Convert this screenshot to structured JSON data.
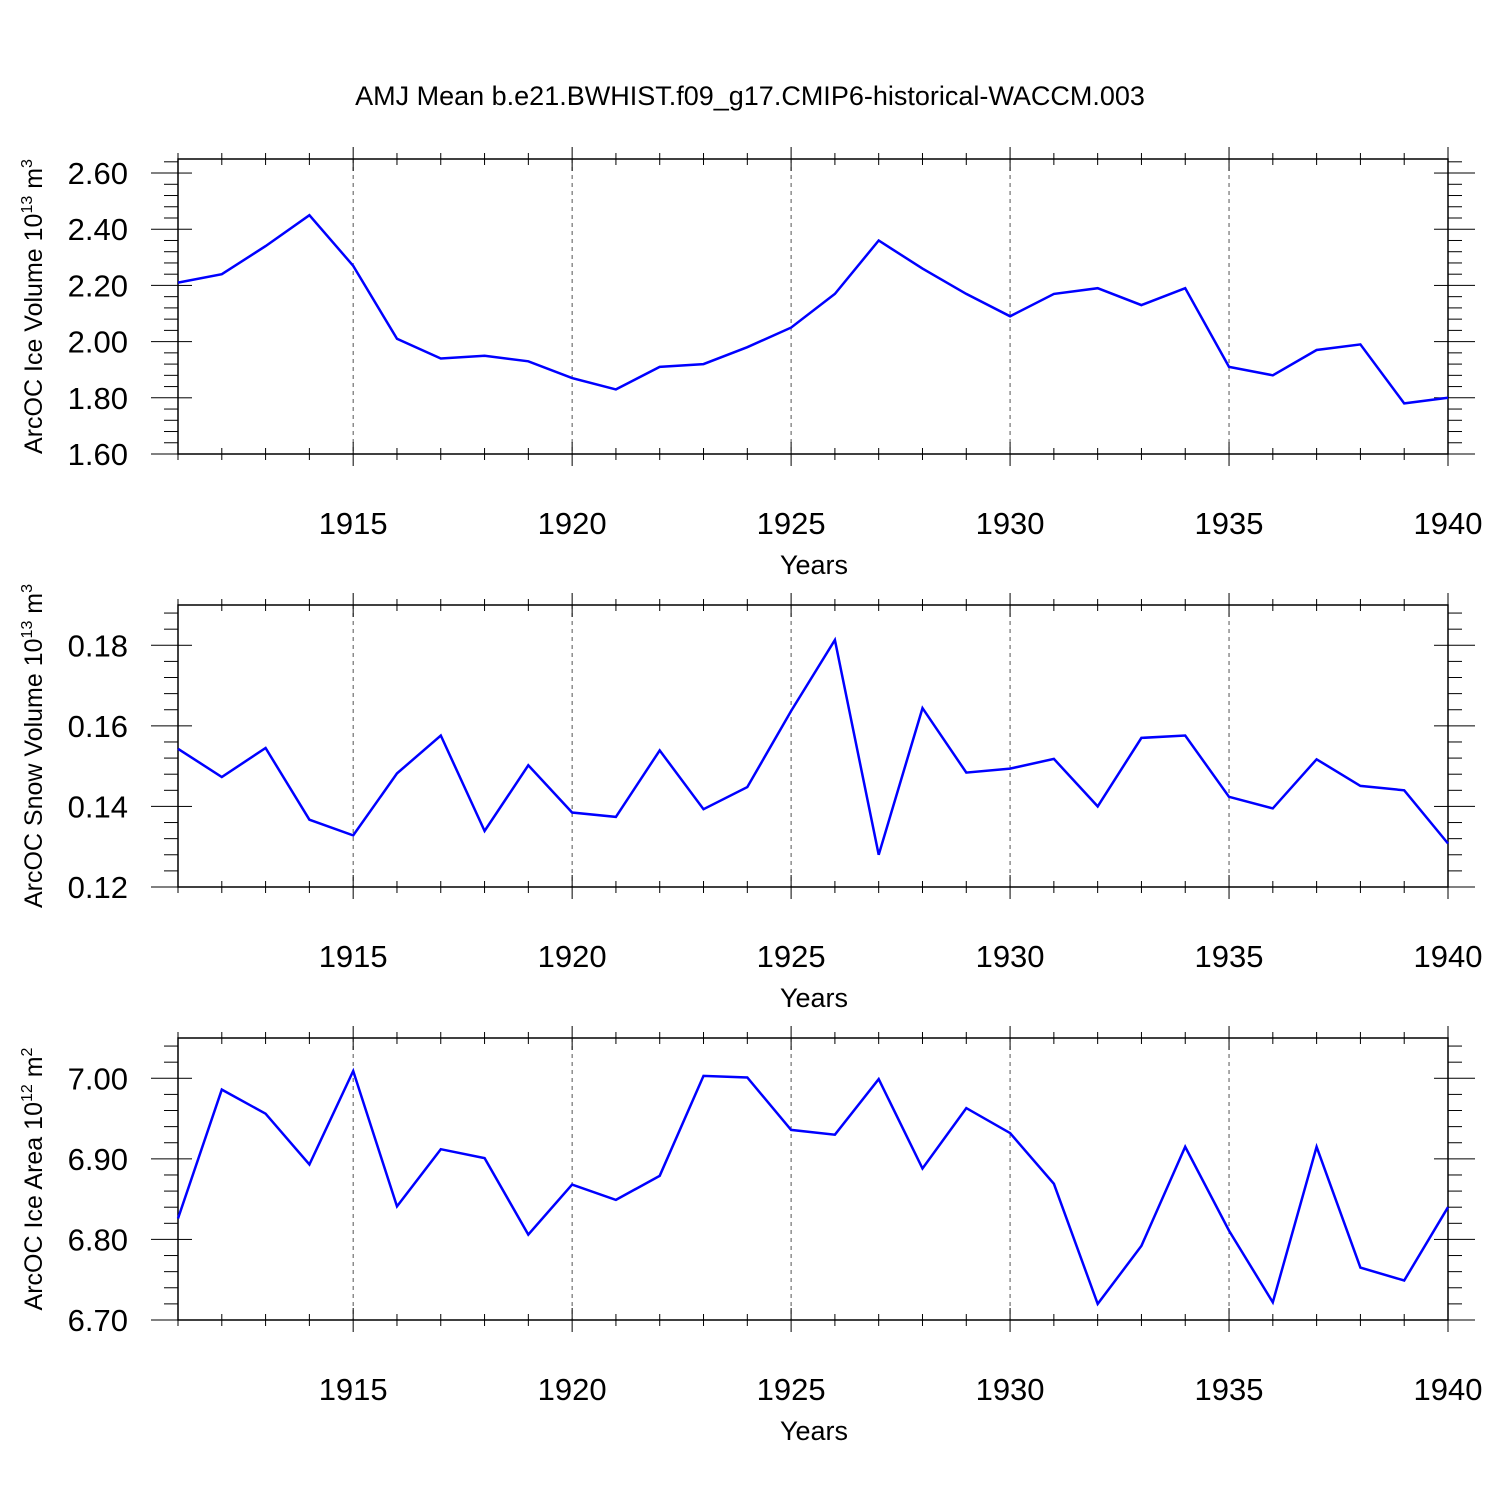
{
  "title": "AMJ Mean b.e21.BWHIST.f09_g17.CMIP6-historical-WACCM.003",
  "line_color": "#0000ff",
  "chart_data": [
    {
      "type": "line",
      "ylabel": {
        "text": "ArcOC Ice Volume 10",
        "sup": "13",
        "unit": " m",
        "unit_sup": "3"
      },
      "xlabel": "Years",
      "xlim": [
        1911,
        1940
      ],
      "ylim": [
        1.6,
        2.65
      ],
      "yticks": [
        1.6,
        1.8,
        2.0,
        2.2,
        2.4,
        2.6
      ],
      "ytick_labels": [
        "1.60",
        "1.80",
        "2.00",
        "2.20",
        "2.40",
        "2.60"
      ],
      "xticks": [
        1915,
        1920,
        1925,
        1930,
        1935,
        1940
      ],
      "xtick_labels": [
        "1915",
        "1920",
        "1925",
        "1930",
        "1935",
        "1940"
      ],
      "x": [
        1911,
        1912,
        1913,
        1914,
        1915,
        1916,
        1917,
        1918,
        1919,
        1920,
        1921,
        1922,
        1923,
        1924,
        1925,
        1926,
        1927,
        1928,
        1929,
        1930,
        1931,
        1932,
        1933,
        1934,
        1935,
        1936,
        1937,
        1938,
        1939,
        1940
      ],
      "values": [
        2.21,
        2.24,
        2.34,
        2.45,
        2.27,
        2.01,
        1.94,
        1.95,
        1.93,
        1.87,
        1.83,
        1.91,
        1.92,
        1.98,
        2.05,
        2.17,
        2.36,
        2.26,
        2.17,
        2.09,
        2.17,
        2.19,
        2.13,
        2.19,
        1.91,
        1.88,
        1.97,
        1.99,
        1.78,
        1.8
      ]
    },
    {
      "type": "line",
      "ylabel": {
        "text": "ArcOC Snow Volume 10",
        "sup": "13",
        "unit": " m",
        "unit_sup": "3"
      },
      "xlabel": "Years",
      "xlim": [
        1911,
        1940
      ],
      "ylim": [
        0.12,
        0.19
      ],
      "yticks": [
        0.12,
        0.14,
        0.16,
        0.18
      ],
      "ytick_labels": [
        "0.12",
        "0.14",
        "0.16",
        "0.18"
      ],
      "xticks": [
        1915,
        1920,
        1925,
        1930,
        1935,
        1940
      ],
      "xtick_labels": [
        "1915",
        "1920",
        "1925",
        "1930",
        "1935",
        "1940"
      ],
      "x": [
        1911,
        1912,
        1913,
        1914,
        1915,
        1916,
        1917,
        1918,
        1919,
        1920,
        1921,
        1922,
        1923,
        1924,
        1925,
        1926,
        1927,
        1928,
        1929,
        1930,
        1931,
        1932,
        1933,
        1934,
        1935,
        1936,
        1937,
        1938,
        1939,
        1940
      ],
      "values": [
        0.1543,
        0.1473,
        0.1545,
        0.1367,
        0.1328,
        0.1482,
        0.1576,
        0.1339,
        0.1502,
        0.1385,
        0.1374,
        0.1539,
        0.1393,
        0.1448,
        0.1637,
        0.1813,
        0.128,
        0.1644,
        0.1484,
        0.1494,
        0.1518,
        0.14,
        0.157,
        0.1576,
        0.1424,
        0.1395,
        0.1517,
        0.1451,
        0.144,
        0.1308
      ]
    },
    {
      "type": "line",
      "ylabel": {
        "text": "ArcOC Ice Area 10",
        "sup": "12",
        "unit": " m",
        "unit_sup": "2"
      },
      "xlabel": "Years",
      "xlim": [
        1911,
        1940
      ],
      "ylim": [
        6.7,
        7.05
      ],
      "yticks": [
        6.7,
        6.8,
        6.9,
        7.0
      ],
      "ytick_labels": [
        "6.70",
        "6.80",
        "6.90",
        "7.00"
      ],
      "xticks": [
        1915,
        1920,
        1925,
        1930,
        1935,
        1940
      ],
      "xtick_labels": [
        "1915",
        "1920",
        "1925",
        "1930",
        "1935",
        "1940"
      ],
      "x": [
        1911,
        1912,
        1913,
        1914,
        1915,
        1916,
        1917,
        1918,
        1919,
        1920,
        1921,
        1922,
        1923,
        1924,
        1925,
        1926,
        1927,
        1928,
        1929,
        1930,
        1931,
        1932,
        1933,
        1934,
        1935,
        1936,
        1937,
        1938,
        1939,
        1940
      ],
      "values": [
        6.826,
        6.986,
        6.956,
        6.893,
        7.009,
        6.841,
        6.912,
        6.901,
        6.806,
        6.868,
        6.849,
        6.879,
        7.003,
        7.001,
        6.936,
        6.93,
        6.999,
        6.888,
        6.963,
        6.932,
        6.869,
        6.72,
        6.792,
        6.915,
        6.811,
        6.722,
        6.915,
        6.765,
        6.749,
        6.84
      ]
    }
  ]
}
